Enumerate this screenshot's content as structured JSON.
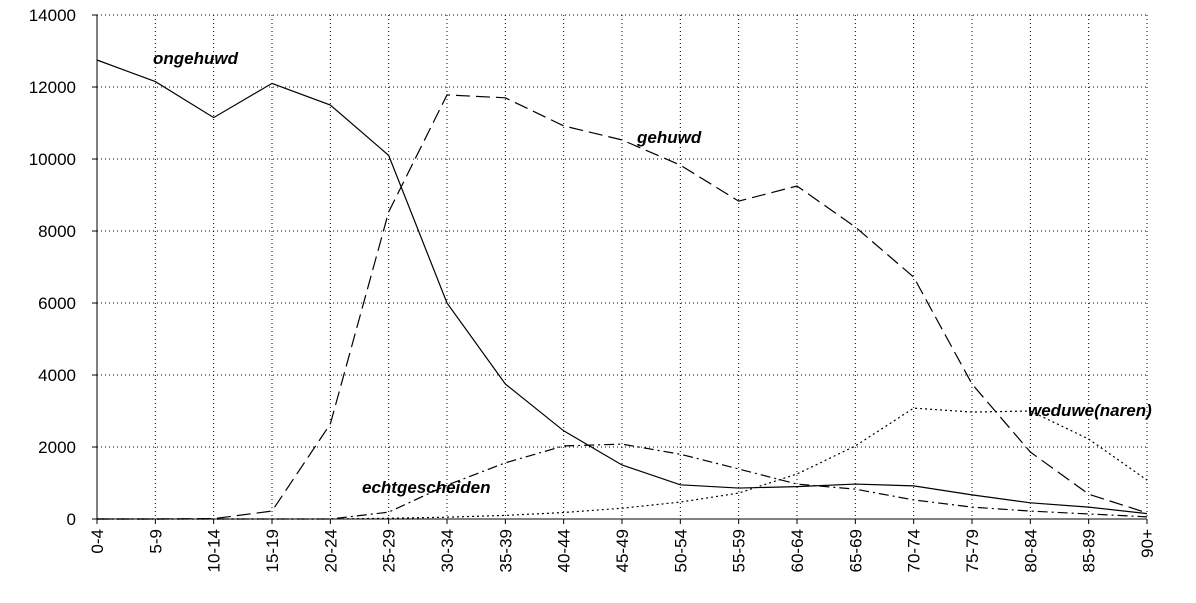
{
  "chart_data": {
    "type": "line",
    "categories": [
      "0-4",
      "5-9",
      "10-14",
      "15-19",
      "20-24",
      "25-29",
      "30-34",
      "35-39",
      "40-44",
      "45-49",
      "50-54",
      "55-59",
      "60-64",
      "65-69",
      "70-74",
      "75-79",
      "80-84",
      "85-89",
      "90+"
    ],
    "series": [
      {
        "name": "ongehuwd",
        "color": "#000000",
        "values": [
          12750,
          12150,
          11150,
          12100,
          11500,
          10100,
          6000,
          3750,
          2450,
          1500,
          950,
          860,
          900,
          970,
          920,
          670,
          450,
          330,
          150
        ]
      },
      {
        "name": "gehuwd",
        "color": "#000000",
        "values": [
          0,
          0,
          10,
          220,
          2640,
          8530,
          11780,
          11700,
          10920,
          10530,
          9830,
          8830,
          9250,
          8110,
          6720,
          3750,
          1860,
          690,
          170
        ]
      },
      {
        "name": "weduwe(naren)",
        "color": "#000000",
        "values": [
          0,
          0,
          0,
          0,
          0,
          20,
          50,
          100,
          180,
          300,
          470,
          720,
          1250,
          2030,
          3080,
          2970,
          3000,
          2220,
          1080
        ]
      },
      {
        "name": "echtgescheiden",
        "color": "#000000",
        "values": [
          0,
          0,
          0,
          0,
          0,
          190,
          940,
          1560,
          2030,
          2080,
          1800,
          1390,
          970,
          830,
          530,
          330,
          220,
          140,
          60
        ]
      }
    ],
    "ylim": [
      0,
      14000
    ],
    "yticks": [
      0,
      2000,
      4000,
      6000,
      8000,
      10000,
      12000,
      14000
    ],
    "grid": true
  }
}
